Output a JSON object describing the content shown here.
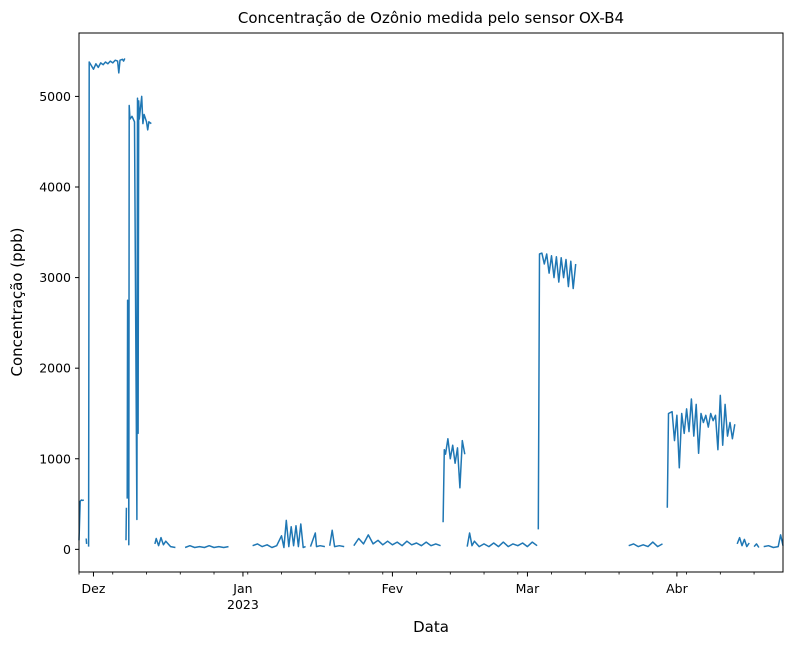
{
  "chart_data": {
    "type": "line",
    "title": "Concentração de Ozônio medida pelo sensor OX-B4",
    "xlabel": "Data",
    "ylabel": "Concentração (ppb)",
    "xlim": [
      "2022-11-28",
      "2023-04-23"
    ],
    "ylim": [
      -250,
      5700
    ],
    "y_ticks": [
      0,
      1000,
      2000,
      3000,
      4000,
      5000
    ],
    "x_ticks": [
      {
        "date": "2022-12-01",
        "label": "Dez"
      },
      {
        "date": "2023-01-01",
        "label": "Jan",
        "sublabel": "2023"
      },
      {
        "date": "2023-02-01",
        "label": "Fev"
      },
      {
        "date": "2023-03-01",
        "label": "Mar"
      },
      {
        "date": "2023-04-01",
        "label": "Abr"
      }
    ],
    "grid": false,
    "legend": "none",
    "series_color": "#1f77b4",
    "series": [
      {
        "segments": [
          [
            [
              "2022-11-28",
              100
            ],
            [
              "2022-11-28T06",
              530
            ],
            [
              "2022-11-28T12",
              545
            ],
            [
              "2022-11-28T18",
              540
            ],
            [
              "2022-11-29",
              545
            ]
          ],
          [
            [
              "2022-11-29T12",
              120
            ],
            [
              "2022-11-29T14",
              60
            ]
          ],
          [
            [
              "2022-11-30",
              30
            ],
            [
              "2022-11-30T03",
              5380
            ],
            [
              "2022-12-01",
              5300
            ],
            [
              "2022-12-01T12",
              5360
            ],
            [
              "2022-12-02",
              5320
            ],
            [
              "2022-12-02T12",
              5370
            ],
            [
              "2022-12-03",
              5350
            ],
            [
              "2022-12-03T12",
              5380
            ],
            [
              "2022-12-04",
              5360
            ],
            [
              "2022-12-04T12",
              5390
            ],
            [
              "2022-12-05",
              5370
            ],
            [
              "2022-12-05T12",
              5400
            ],
            [
              "2022-12-06",
              5390
            ],
            [
              "2022-12-06T06",
              5260
            ],
            [
              "2022-12-06T12",
              5400
            ],
            [
              "2022-12-07",
              5410
            ],
            [
              "2022-12-07T06",
              5390
            ],
            [
              "2022-12-07T12",
              5420
            ]
          ],
          [
            [
              "2022-12-07T18",
              100
            ],
            [
              "2022-12-07T20",
              460
            ]
          ],
          [
            [
              "2022-12-08",
              560
            ],
            [
              "2022-12-08T02",
              2750
            ],
            [
              "2022-12-08T04",
              1550
            ],
            [
              "2022-12-08T06",
              2720
            ],
            [
              "2022-12-08T08",
              50
            ],
            [
              "2022-12-08T10",
              4900
            ],
            [
              "2022-12-08T14",
              4750
            ],
            [
              "2022-12-09",
              4780
            ],
            [
              "2022-12-09T12",
              4720
            ],
            [
              "2022-12-10",
              330
            ],
            [
              "2022-12-10T03",
              4980
            ],
            [
              "2022-12-10T06",
              1280
            ],
            [
              "2022-12-10T09",
              4950
            ],
            [
              "2022-12-10T12",
              4750
            ],
            [
              "2022-12-11",
              5000
            ],
            [
              "2022-12-11T06",
              4700
            ],
            [
              "2022-12-11T12",
              4800
            ],
            [
              "2022-12-12",
              4720
            ],
            [
              "2022-12-12T06",
              4630
            ],
            [
              "2022-12-12T12",
              4720
            ],
            [
              "2022-12-13",
              4700
            ]
          ],
          [
            [
              "2022-12-13T18",
              60
            ],
            [
              "2022-12-14",
              120
            ],
            [
              "2022-12-14T12",
              40
            ],
            [
              "2022-12-15",
              130
            ],
            [
              "2022-12-15T12",
              50
            ],
            [
              "2022-12-16",
              90
            ],
            [
              "2022-12-17",
              30
            ],
            [
              "2022-12-18",
              20
            ]
          ],
          [
            [
              "2022-12-20",
              20
            ],
            [
              "2022-12-21",
              40
            ],
            [
              "2022-12-22",
              20
            ],
            [
              "2022-12-23",
              30
            ],
            [
              "2022-12-24",
              20
            ],
            [
              "2022-12-25",
              40
            ],
            [
              "2022-12-26",
              20
            ],
            [
              "2022-12-27",
              30
            ],
            [
              "2022-12-28",
              20
            ],
            [
              "2022-12-29",
              30
            ]
          ],
          [
            [
              "2023-01-03",
              40
            ],
            [
              "2023-01-04",
              60
            ],
            [
              "2023-01-05",
              30
            ],
            [
              "2023-01-06",
              50
            ],
            [
              "2023-01-07",
              20
            ],
            [
              "2023-01-08",
              40
            ],
            [
              "2023-01-09",
              150
            ],
            [
              "2023-01-09T12",
              20
            ],
            [
              "2023-01-10",
              320
            ],
            [
              "2023-01-10T12",
              30
            ],
            [
              "2023-01-11",
              250
            ],
            [
              "2023-01-11T12",
              40
            ],
            [
              "2023-01-12",
              260
            ],
            [
              "2023-01-12T12",
              30
            ],
            [
              "2023-01-13",
              280
            ],
            [
              "2023-01-13T12",
              20
            ],
            [
              "2023-01-14",
              30
            ]
          ],
          [
            [
              "2023-01-15",
              30
            ],
            [
              "2023-01-16",
              180
            ],
            [
              "2023-01-16T06",
              30
            ],
            [
              "2023-01-17",
              40
            ],
            [
              "2023-01-18",
              30
            ]
          ],
          [
            [
              "2023-01-19",
              40
            ],
            [
              "2023-01-19T12",
              210
            ],
            [
              "2023-01-20",
              30
            ],
            [
              "2023-01-21",
              40
            ],
            [
              "2023-01-22",
              30
            ]
          ],
          [
            [
              "2023-01-24",
              40
            ],
            [
              "2023-01-25",
              120
            ],
            [
              "2023-01-26",
              60
            ],
            [
              "2023-01-27",
              160
            ],
            [
              "2023-01-28",
              60
            ],
            [
              "2023-01-29",
              100
            ],
            [
              "2023-01-30",
              50
            ],
            [
              "2023-01-31",
              90
            ],
            [
              "2023-02-01",
              50
            ],
            [
              "2023-02-02",
              80
            ],
            [
              "2023-02-03",
              40
            ],
            [
              "2023-02-04",
              90
            ],
            [
              "2023-02-05",
              50
            ],
            [
              "2023-02-06",
              70
            ],
            [
              "2023-02-07",
              40
            ],
            [
              "2023-02-08",
              80
            ],
            [
              "2023-02-09",
              40
            ],
            [
              "2023-02-10",
              60
            ],
            [
              "2023-02-11",
              40
            ]
          ],
          [
            [
              "2023-02-11T12",
              300
            ],
            [
              "2023-02-11T18",
              1100
            ],
            [
              "2023-02-12",
              1050
            ],
            [
              "2023-02-12T12",
              1220
            ],
            [
              "2023-02-13",
              1000
            ],
            [
              "2023-02-13T12",
              1150
            ],
            [
              "2023-02-14",
              950
            ],
            [
              "2023-02-14T12",
              1120
            ],
            [
              "2023-02-15",
              680
            ],
            [
              "2023-02-15T12",
              1200
            ],
            [
              "2023-02-16",
              1050
            ]
          ],
          [
            [
              "2023-02-16T12",
              30
            ],
            [
              "2023-02-17",
              180
            ],
            [
              "2023-02-17T12",
              40
            ],
            [
              "2023-02-18",
              90
            ],
            [
              "2023-02-19",
              30
            ],
            [
              "2023-02-20",
              60
            ],
            [
              "2023-02-21",
              30
            ],
            [
              "2023-02-22",
              70
            ],
            [
              "2023-02-23",
              30
            ],
            [
              "2023-02-24",
              80
            ],
            [
              "2023-02-25",
              30
            ],
            [
              "2023-02-26",
              60
            ],
            [
              "2023-02-27",
              40
            ],
            [
              "2023-02-28",
              70
            ],
            [
              "2023-03-01",
              30
            ],
            [
              "2023-03-02",
              80
            ],
            [
              "2023-03-03",
              40
            ]
          ],
          [
            [
              "2023-03-03T06",
              220
            ],
            [
              "2023-03-03T12",
              3260
            ],
            [
              "2023-03-04",
              3270
            ],
            [
              "2023-03-04T12",
              3150
            ],
            [
              "2023-03-05",
              3260
            ],
            [
              "2023-03-05T12",
              3050
            ],
            [
              "2023-03-06",
              3240
            ],
            [
              "2023-03-06T12",
              3000
            ],
            [
              "2023-03-07",
              3230
            ],
            [
              "2023-03-07T12",
              2950
            ],
            [
              "2023-03-08",
              3220
            ],
            [
              "2023-03-08T12",
              3000
            ],
            [
              "2023-03-09",
              3200
            ],
            [
              "2023-03-09T12",
              2900
            ],
            [
              "2023-03-10",
              3180
            ],
            [
              "2023-03-10T12",
              2880
            ],
            [
              "2023-03-11",
              3150
            ]
          ],
          [
            [
              "2023-03-22",
              40
            ],
            [
              "2023-03-23",
              60
            ],
            [
              "2023-03-24",
              30
            ],
            [
              "2023-03-25",
              50
            ],
            [
              "2023-03-26",
              30
            ],
            [
              "2023-03-27",
              80
            ],
            [
              "2023-03-28",
              30
            ],
            [
              "2023-03-29",
              60
            ]
          ],
          [
            [
              "2023-03-30",
              460
            ],
            [
              "2023-03-30T06",
              1500
            ],
            [
              "2023-03-31",
              1520
            ],
            [
              "2023-03-31T12",
              1200
            ],
            [
              "2023-04-01",
              1480
            ],
            [
              "2023-04-01T12",
              900
            ],
            [
              "2023-04-02",
              1500
            ],
            [
              "2023-04-02T12",
              1280
            ],
            [
              "2023-04-03",
              1550
            ],
            [
              "2023-04-03T12",
              1300
            ],
            [
              "2023-04-04",
              1660
            ],
            [
              "2023-04-04T12",
              1250
            ],
            [
              "2023-04-05",
              1600
            ],
            [
              "2023-04-05T12",
              1060
            ],
            [
              "2023-04-06",
              1500
            ],
            [
              "2023-04-06T12",
              1400
            ],
            [
              "2023-04-07",
              1480
            ],
            [
              "2023-04-07T12",
              1350
            ],
            [
              "2023-04-08",
              1500
            ],
            [
              "2023-04-08T12",
              1420
            ],
            [
              "2023-04-09",
              1480
            ],
            [
              "2023-04-09T12",
              1100
            ],
            [
              "2023-04-10",
              1700
            ],
            [
              "2023-04-10T12",
              1150
            ],
            [
              "2023-04-11",
              1600
            ],
            [
              "2023-04-11T12",
              1250
            ],
            [
              "2023-04-12",
              1400
            ],
            [
              "2023-04-12T12",
              1220
            ],
            [
              "2023-04-13",
              1380
            ]
          ],
          [
            [
              "2023-04-13T12",
              60
            ],
            [
              "2023-04-14",
              130
            ],
            [
              "2023-04-14T12",
              40
            ],
            [
              "2023-04-15",
              110
            ],
            [
              "2023-04-15T12",
              30
            ],
            [
              "2023-04-16",
              70
            ]
          ],
          [
            [
              "2023-04-17",
              30
            ],
            [
              "2023-04-17T12",
              60
            ],
            [
              "2023-04-18",
              20
            ]
          ],
          [
            [
              "2023-04-19",
              30
            ],
            [
              "2023-04-20",
              40
            ],
            [
              "2023-04-21",
              20
            ],
            [
              "2023-04-22",
              30
            ],
            [
              "2023-04-22T12",
              160
            ],
            [
              "2023-04-23",
              40
            ]
          ]
        ]
      }
    ]
  }
}
